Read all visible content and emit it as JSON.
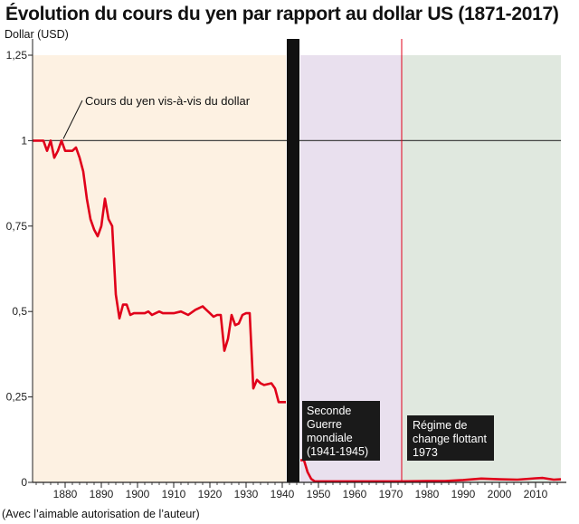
{
  "chart_data": {
    "type": "line",
    "title": "Évolution du cours du yen par rapport au dollar US (1871-2017)",
    "ylabel": "Dollar (USD)",
    "xlabel": "",
    "xlim": [
      1871,
      2017
    ],
    "ylim": [
      0,
      1.25
    ],
    "grid": false,
    "x_ticks": [
      "1880",
      "1890",
      "1900",
      "1910",
      "1920",
      "1930",
      "1940",
      "1950",
      "1960",
      "1970",
      "1980",
      "1990",
      "2000",
      "2010"
    ],
    "y_ticks": [
      {
        "value": 0,
        "label": "0"
      },
      {
        "value": 0.25,
        "label": "0,25"
      },
      {
        "value": 0.5,
        "label": "0,5"
      },
      {
        "value": 0.75,
        "label": "0,75"
      },
      {
        "value": 1,
        "label": "1"
      },
      {
        "value": 1.25,
        "label": "1,25"
      }
    ],
    "reference_line": 1,
    "series": [
      {
        "name": "Cours du yen vis-à-vis du dollar",
        "color": "#e0001a",
        "segments": [
          [
            [
              1871,
              1.0
            ],
            [
              1874,
              1.0
            ],
            [
              1875,
              0.97
            ],
            [
              1876,
              1.0
            ],
            [
              1877,
              0.95
            ],
            [
              1878,
              0.97
            ],
            [
              1879,
              1.0
            ],
            [
              1880,
              0.97
            ],
            [
              1882,
              0.97
            ],
            [
              1883,
              0.98
            ],
            [
              1884,
              0.95
            ],
            [
              1885,
              0.91
            ],
            [
              1886,
              0.83
            ],
            [
              1887,
              0.77
            ],
            [
              1888,
              0.74
            ],
            [
              1889,
              0.72
            ],
            [
              1890,
              0.75
            ],
            [
              1891,
              0.83
            ],
            [
              1892,
              0.77
            ],
            [
              1893,
              0.75
            ],
            [
              1894,
              0.55
            ],
            [
              1895,
              0.48
            ],
            [
              1896,
              0.52
            ],
            [
              1897,
              0.52
            ],
            [
              1898,
              0.49
            ],
            [
              1899,
              0.495
            ],
            [
              1900,
              0.495
            ],
            [
              1902,
              0.495
            ],
            [
              1903,
              0.5
            ],
            [
              1904,
              0.49
            ],
            [
              1905,
              0.495
            ],
            [
              1906,
              0.5
            ],
            [
              1907,
              0.495
            ],
            [
              1910,
              0.495
            ],
            [
              1912,
              0.5
            ],
            [
              1914,
              0.49
            ],
            [
              1916,
              0.505
            ],
            [
              1917,
              0.51
            ],
            [
              1918,
              0.515
            ],
            [
              1919,
              0.505
            ],
            [
              1920,
              0.495
            ],
            [
              1921,
              0.485
            ],
            [
              1922,
              0.49
            ],
            [
              1923,
              0.49
            ],
            [
              1924,
              0.385
            ],
            [
              1925,
              0.42
            ],
            [
              1926,
              0.49
            ],
            [
              1927,
              0.46
            ],
            [
              1928,
              0.465
            ],
            [
              1929,
              0.49
            ],
            [
              1930,
              0.495
            ],
            [
              1931,
              0.495
            ],
            [
              1932,
              0.275
            ],
            [
              1933,
              0.3
            ],
            [
              1934,
              0.29
            ],
            [
              1935,
              0.285
            ],
            [
              1937,
              0.29
            ],
            [
              1938,
              0.275
            ],
            [
              1939,
              0.235
            ],
            [
              1941,
              0.235
            ]
          ],
          [
            [
              1945,
              0.065
            ],
            [
              1946,
              0.065
            ],
            [
              1947,
              0.03
            ],
            [
              1948,
              0.01
            ],
            [
              1949,
              0.003
            ],
            [
              1960,
              0.003
            ],
            [
              1973,
              0.003
            ],
            [
              1980,
              0.004
            ],
            [
              1985,
              0.004
            ],
            [
              1990,
              0.007
            ],
            [
              1995,
              0.011
            ],
            [
              2000,
              0.009
            ],
            [
              2005,
              0.008
            ],
            [
              2010,
              0.012
            ],
            [
              2012,
              0.013
            ],
            [
              2015,
              0.008
            ],
            [
              2017,
              0.009
            ]
          ]
        ]
      }
    ],
    "periods": [
      {
        "start": 1871,
        "end": 1941,
        "color": "#fdf1e2"
      },
      {
        "start": 1945,
        "end": 1973,
        "color": "#e9e0ee"
      },
      {
        "start": 1973,
        "end": 2017,
        "color": "#e0e8df"
      }
    ],
    "war_band": {
      "start": 1941,
      "end": 1945,
      "color": "#111111"
    },
    "float_line": {
      "year": 1973,
      "color": "#e0001a"
    },
    "annotations": {
      "series_label": "Cours du yen vis-à-vis du dollar",
      "war_box": [
        "Seconde",
        "Guerre",
        "mondiale",
        "(1941-1945)"
      ],
      "float_box": [
        "Régime de",
        "change flottant",
        "1973"
      ]
    }
  },
  "source_note": "(Avec l’aimable autorisation de l’auteur)"
}
